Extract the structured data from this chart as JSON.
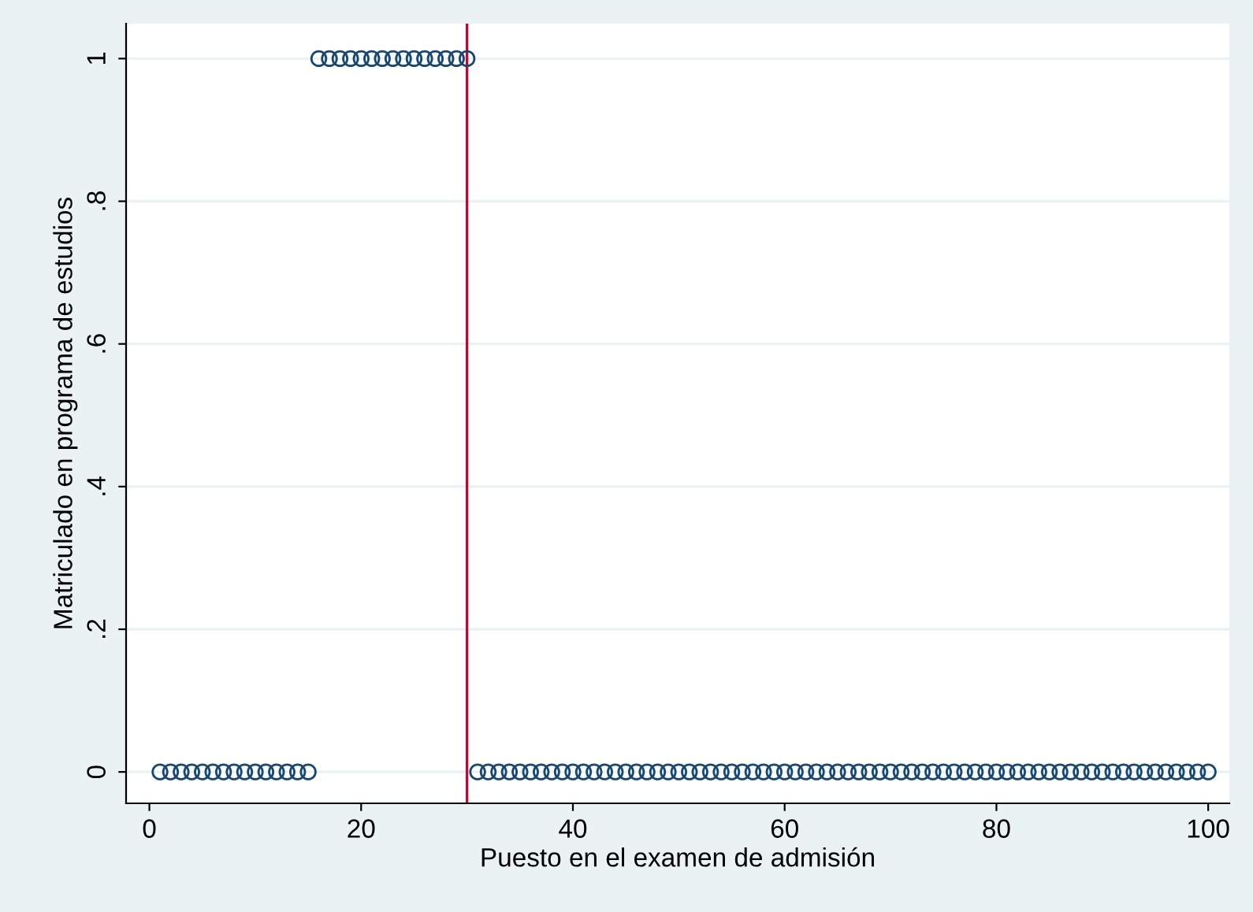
{
  "chart_data": {
    "type": "scatter",
    "xlabel": "Puesto en el examen de admisión",
    "ylabel": "Matriculado en programa de estudios",
    "x": [
      1,
      2,
      3,
      4,
      5,
      6,
      7,
      8,
      9,
      10,
      11,
      12,
      13,
      14,
      15,
      16,
      17,
      18,
      19,
      20,
      21,
      22,
      23,
      24,
      25,
      26,
      27,
      28,
      29,
      30,
      31,
      32,
      33,
      34,
      35,
      36,
      37,
      38,
      39,
      40,
      41,
      42,
      43,
      44,
      45,
      46,
      47,
      48,
      49,
      50,
      51,
      52,
      53,
      54,
      55,
      56,
      57,
      58,
      59,
      60,
      61,
      62,
      63,
      64,
      65,
      66,
      67,
      68,
      69,
      70,
      71,
      72,
      73,
      74,
      75,
      76,
      77,
      78,
      79,
      80,
      81,
      82,
      83,
      84,
      85,
      86,
      87,
      88,
      89,
      90,
      91,
      92,
      93,
      94,
      95,
      96,
      97,
      98,
      99,
      100
    ],
    "series": [
      {
        "color": "#1a476f",
        "values": [
          0,
          0,
          0,
          0,
          0,
          0,
          0,
          0,
          0,
          0,
          0,
          0,
          0,
          0,
          0,
          1,
          1,
          1,
          1,
          1,
          1,
          1,
          1,
          1,
          1,
          1,
          1,
          1,
          1,
          1,
          0,
          0,
          0,
          0,
          0,
          0,
          0,
          0,
          0,
          0,
          0,
          0,
          0,
          0,
          0,
          0,
          0,
          0,
          0,
          0,
          0,
          0,
          0,
          0,
          0,
          0,
          0,
          0,
          0,
          0,
          0,
          0,
          0,
          0,
          0,
          0,
          0,
          0,
          0,
          0,
          0,
          0,
          0,
          0,
          0,
          0,
          0,
          0,
          0,
          0,
          0,
          0,
          0,
          0,
          0,
          0,
          0,
          0,
          0,
          0,
          0,
          0,
          0,
          0,
          0,
          0,
          0,
          0,
          0,
          0
        ]
      }
    ],
    "marker": "circle",
    "xlim": [
      -2.2,
      102
    ],
    "ylim": [
      -0.044,
      1.049
    ],
    "xticks": [
      0,
      20,
      40,
      60,
      80,
      100
    ],
    "yticks": [
      0,
      {
        "value": 0.2,
        "label": ".2"
      },
      {
        "value": 0.4,
        "label": ".4"
      },
      {
        "value": 0.6,
        "label": ".6"
      },
      {
        "value": 0.8,
        "label": ".8"
      },
      1
    ],
    "grid": "y",
    "ref_lines": [
      {
        "axis": "x",
        "value": 30,
        "color": "#c10534"
      }
    ]
  }
}
